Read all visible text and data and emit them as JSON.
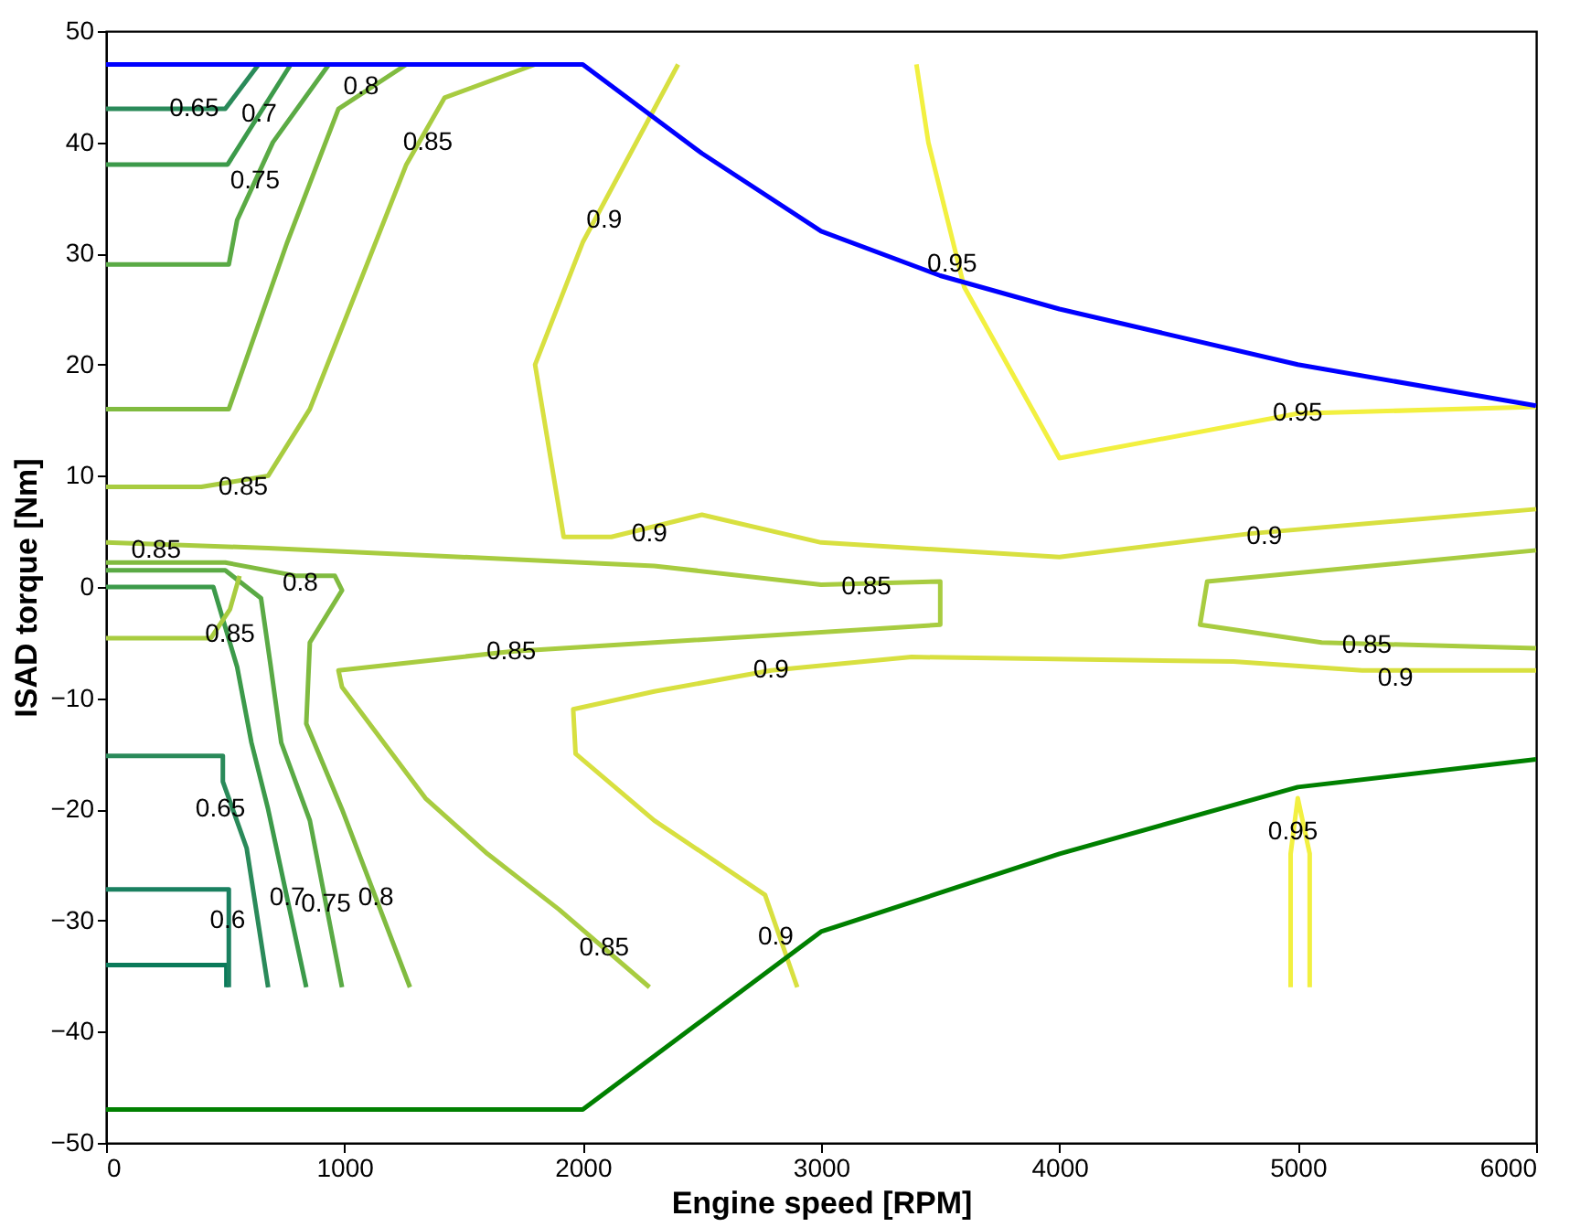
{
  "chart_data": {
    "type": "line",
    "xlabel": "Engine speed [RPM]",
    "ylabel": "ISAD torque [Nm]",
    "xlim": [
      0,
      6000
    ],
    "xticks": [
      0,
      1000,
      2000,
      3000,
      4000,
      5000,
      6000
    ],
    "ylim": [
      -50,
      50
    ],
    "yticks": [
      -50,
      -40,
      -30,
      -20,
      -10,
      0,
      10,
      20,
      30,
      40,
      50
    ],
    "grid": false,
    "legend": false,
    "marker": "none",
    "line_style": "solid",
    "series": [
      {
        "color": "#2a8a5a",
        "x": [
          0,
          500,
          640
        ],
        "values": [
          43,
          43,
          47
        ]
      },
      {
        "color": "#3c9a4a",
        "x": [
          0,
          510,
          775
        ],
        "values": [
          38,
          38,
          47
        ]
      },
      {
        "color": "#5aaa45",
        "x": [
          0,
          515,
          550,
          700,
          935
        ],
        "values": [
          29,
          29,
          33,
          40,
          47
        ]
      },
      {
        "color": "#80bb40",
        "x": [
          0,
          515,
          760,
          975,
          1260
        ],
        "values": [
          16,
          16,
          31,
          43,
          47
        ]
      },
      {
        "color": "#a8cc40",
        "x": [
          0,
          400,
          680,
          855,
          1260,
          1420,
          1800
        ],
        "values": [
          9,
          9,
          10,
          16,
          38,
          44,
          47
        ]
      },
      {
        "color": "#d8e040",
        "x": [
          2400,
          2000,
          1800,
          1920,
          2120,
          2500,
          3000,
          4000,
          4800,
          6000
        ],
        "values": [
          47,
          31,
          20,
          4.5,
          4.5,
          6.5,
          4,
          2.7,
          4.8,
          7
        ]
      },
      {
        "color": "#f2f040",
        "x": [
          3400,
          3450,
          3600,
          4000,
          5000,
          6000
        ],
        "values": [
          47,
          40,
          27,
          11.6,
          15.6,
          16.2
        ]
      },
      {
        "color": "#a8cc40",
        "x": [
          0,
          680,
          2300,
          3000,
          3500,
          3500,
          2300,
          1700,
          1230,
          975,
          990,
          1340,
          1600,
          1900,
          2280
        ],
        "values": [
          4,
          3.5,
          1.9,
          0.2,
          0.5,
          -3.4,
          -5,
          -5.8,
          -6.9,
          -7.5,
          -9,
          -19,
          -24,
          -29,
          -36
        ]
      },
      {
        "color": "#d8e040",
        "x": [
          6000,
          5270,
          4730,
          3380,
          2790,
          2300,
          1960,
          1970,
          2300,
          2765,
          2900
        ],
        "values": [
          -7.5,
          -7.5,
          -6.7,
          -6.3,
          -7.5,
          -9.4,
          -11,
          -15,
          -21,
          -27.7,
          -36
        ]
      },
      {
        "color": "#a8cc40",
        "x": [
          6000,
          4620,
          4590,
          5100,
          6000
        ],
        "values": [
          3.3,
          0.5,
          -3.4,
          -5,
          -5.5
        ]
      },
      {
        "color": "#f2f040",
        "x": [
          4970,
          4970,
          5000,
          5050,
          5050
        ],
        "values": [
          -36,
          -24,
          -19,
          -24,
          -36
        ]
      },
      {
        "color": "#0a7a5a",
        "x": [
          0,
          505,
          505
        ],
        "values": [
          -34,
          -34,
          -36
        ]
      },
      {
        "color": "#1a8060",
        "x": [
          0,
          515,
          515
        ],
        "values": [
          -27.2,
          -27.2,
          -36
        ]
      },
      {
        "color": "#2a8a5a",
        "x": [
          0,
          490,
          490,
          590,
          680
        ],
        "values": [
          -15.2,
          -15.2,
          -17.5,
          -23.5,
          -36
        ]
      },
      {
        "color": "#3c9a4a",
        "x": [
          0,
          450,
          550,
          610,
          680,
          840
        ],
        "values": [
          0,
          0,
          -7.2,
          -14,
          -20,
          -36
        ]
      },
      {
        "color": "#5aaa45",
        "x": [
          0,
          500,
          650,
          690,
          735,
          855,
          990
        ],
        "values": [
          1.5,
          1.5,
          -1,
          -7,
          -14,
          -21,
          -36
        ]
      },
      {
        "color": "#80bb40",
        "x": [
          0,
          500,
          800,
          960,
          990,
          855,
          840,
          990,
          1275
        ],
        "values": [
          2.2,
          2.2,
          1,
          1,
          -0.3,
          -5,
          -12.3,
          -20,
          -36
        ]
      },
      {
        "color": "#a8cc40",
        "x": [
          0,
          440,
          520,
          560
        ],
        "values": [
          -4.6,
          -4.6,
          -2,
          1
        ]
      },
      {
        "color": "#0000ff",
        "x": [
          0,
          2000,
          2500,
          3000,
          3500,
          4000,
          5000,
          6000
        ],
        "values": [
          47,
          47,
          39,
          32,
          28,
          25,
          20,
          16.3
        ]
      },
      {
        "color": "#008000",
        "x": [
          0,
          2000,
          2500,
          3000,
          4000,
          5000,
          6000
        ],
        "values": [
          -47,
          -47,
          -39,
          -31,
          -24,
          -18,
          -15.5
        ]
      }
    ],
    "annotations": [
      {
        "text": "0.65",
        "x": 370,
        "y": 43
      },
      {
        "text": "0.7",
        "x": 642.5,
        "y": 42.5
      },
      {
        "text": "0.75",
        "x": 625,
        "y": 36.5
      },
      {
        "text": "0.8",
        "x": 1070,
        "y": 45
      },
      {
        "text": "0.85",
        "x": 1350,
        "y": 40
      },
      {
        "text": "0.85",
        "x": 575,
        "y": 9
      },
      {
        "text": "0.9",
        "x": 2090,
        "y": 33
      },
      {
        "text": "0.9",
        "x": 2280,
        "y": 4.8
      },
      {
        "text": "0.95",
        "x": 3550,
        "y": 29
      },
      {
        "text": "0.95",
        "x": 5000,
        "y": 15.6
      },
      {
        "text": "0.9",
        "x": 4860,
        "y": 4.5
      },
      {
        "text": "0.85",
        "x": 3190,
        "y": 0
      },
      {
        "text": "0.85",
        "x": 1700,
        "y": -5.8
      },
      {
        "text": "0.9",
        "x": 2790,
        "y": -7.5
      },
      {
        "text": "0.85",
        "x": 5290,
        "y": -5.3
      },
      {
        "text": "0.9",
        "x": 5410,
        "y": -8.2
      },
      {
        "text": "0.95",
        "x": 4980,
        "y": -22
      },
      {
        "text": "0.9",
        "x": 2810,
        "y": -31.5
      },
      {
        "text": "0.85",
        "x": 2090,
        "y": -32.5
      },
      {
        "text": "0.8",
        "x": 1132.5,
        "y": -28
      },
      {
        "text": "0.75",
        "x": 922.5,
        "y": -28.5
      },
      {
        "text": "0.7",
        "x": 760,
        "y": -28
      },
      {
        "text": "0.65",
        "x": 480,
        "y": -20
      },
      {
        "text": "0.6",
        "x": 510,
        "y": -30
      },
      {
        "text": "0.85",
        "x": 210,
        "y": 3.3
      },
      {
        "text": "0.85",
        "x": 520,
        "y": -4.3
      },
      {
        "text": "0.8",
        "x": 815,
        "y": 0.3
      }
    ]
  }
}
